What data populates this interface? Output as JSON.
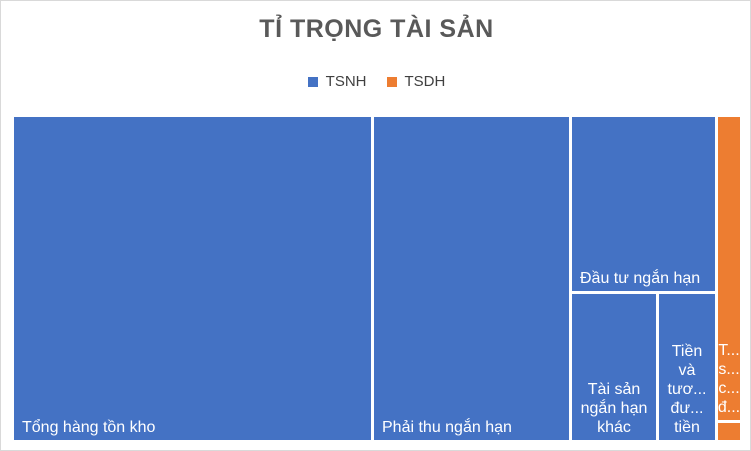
{
  "chart_data": {
    "type": "treemap",
    "title": "TỈ TRỌNG TÀI SẢN",
    "legend_position": "top",
    "series": [
      {
        "name": "TSNH",
        "color": "#4472C4"
      },
      {
        "name": "TSDH",
        "color": "#ED7D31"
      }
    ],
    "items": [
      {
        "group": "TSNH",
        "label_lines": [
          "Tổng hàng tồn kho"
        ],
        "value": 49.5,
        "align": "bottom-left"
      },
      {
        "group": "TSNH",
        "label_lines": [
          "Phải thu ngắn hạn"
        ],
        "value": 27.3,
        "align": "bottom-left"
      },
      {
        "group": "TSNH",
        "label_lines": [
          "Đầu tư ngắn hạn"
        ],
        "value": 11.2,
        "align": "bottom-left"
      },
      {
        "group": "TSNH",
        "label_lines": [
          "Tài sản",
          "ngắn hạn",
          "khác"
        ],
        "value": 6.2,
        "align": "bottom-center"
      },
      {
        "group": "TSNH",
        "label_lines": [
          "Tiền",
          "và",
          "tươ...",
          "đư...",
          "tiền"
        ],
        "value": 4.6,
        "align": "bottom-center"
      },
      {
        "group": "TSDH",
        "label_lines": [
          "T...",
          "s...",
          "c...",
          "đ..."
        ],
        "value": 1.0,
        "align": "bottom-center"
      },
      {
        "group": "TSDH",
        "label_lines": [],
        "value": 0.1,
        "align": "bottom-center"
      }
    ]
  }
}
